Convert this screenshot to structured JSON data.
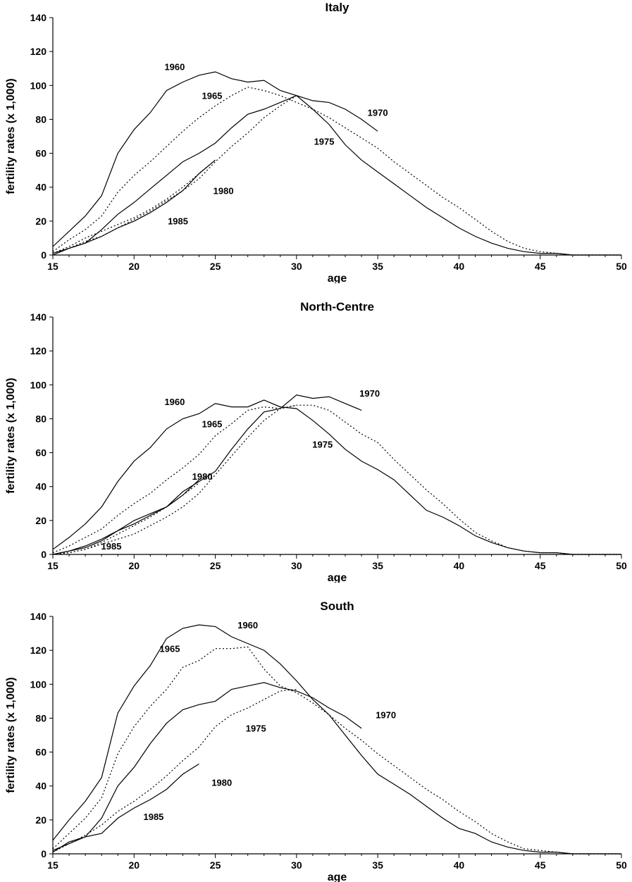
{
  "chart_data": [
    {
      "type": "line",
      "title": "Italy",
      "xlabel": "age",
      "ylabel": "fertility rates (x 1,000)",
      "xlim": [
        15,
        50
      ],
      "ylim": [
        0,
        140
      ],
      "xticks": [
        "15",
        "20",
        "25",
        "30",
        "35",
        "40",
        "45",
        "50"
      ],
      "yticks": [
        "0",
        "20",
        "40",
        "60",
        "80",
        "100",
        "120",
        "140"
      ],
      "legend": "none",
      "grid": false,
      "series": [
        {
          "style": "solid",
          "x": [
            15,
            16,
            17,
            18,
            19,
            20,
            21,
            22,
            23,
            24,
            25,
            26,
            27,
            28,
            29,
            30,
            31,
            32,
            33,
            34,
            35,
            36,
            37,
            38,
            39,
            40,
            41,
            42,
            43,
            44,
            45,
            46,
            47,
            48,
            49,
            50
          ],
          "y": [
            5,
            14,
            23,
            35,
            60,
            74,
            84,
            97,
            102,
            106,
            108,
            104,
            102,
            103,
            97,
            94,
            86,
            77,
            65,
            56,
            49,
            42,
            35,
            28,
            22,
            16,
            11,
            7,
            4,
            2,
            1,
            1,
            0,
            0,
            0,
            0
          ]
        },
        {
          "style": "dotted",
          "x": [
            15,
            16,
            17,
            18,
            19,
            20,
            21,
            22,
            23,
            24,
            25,
            26,
            27,
            28,
            29,
            30,
            31,
            32,
            33,
            34,
            35,
            36,
            37,
            38,
            39,
            40,
            41,
            42,
            43,
            44,
            45,
            46,
            47,
            48,
            49,
            50
          ],
          "y": [
            2,
            9,
            15,
            23,
            37,
            47,
            55,
            64,
            73,
            81,
            88,
            94,
            99,
            97,
            94,
            90,
            86,
            81,
            75,
            69,
            63,
            55,
            48,
            41,
            34,
            28,
            21,
            14,
            8,
            4,
            2,
            1,
            0,
            0,
            0,
            0
          ]
        },
        {
          "style": "solid",
          "x": [
            15,
            16,
            17,
            18,
            19,
            20,
            21,
            22,
            23,
            24,
            25,
            26,
            27,
            28,
            29,
            30,
            31,
            32,
            33,
            34,
            35
          ],
          "y": [
            1,
            4,
            7,
            15,
            24,
            31,
            39,
            47,
            55,
            60,
            66,
            75,
            83,
            86,
            90,
            94,
            91,
            90,
            86,
            80,
            73
          ]
        },
        {
          "style": "dotted",
          "x": [
            15,
            16,
            17,
            18,
            19,
            20,
            21,
            22,
            23,
            24,
            25,
            26,
            27,
            28,
            29,
            30
          ],
          "y": [
            1,
            4,
            8,
            11,
            16,
            21,
            26,
            32,
            38,
            45,
            55,
            64,
            72,
            81,
            88,
            94
          ]
        },
        {
          "style": "dotted",
          "x": [
            15,
            16,
            17,
            18,
            19,
            20,
            21,
            22,
            23,
            24,
            25
          ],
          "y": [
            1,
            5,
            10,
            14,
            18,
            22,
            27,
            33,
            40,
            48,
            56
          ]
        },
        {
          "style": "solid",
          "x": [
            15,
            16,
            17,
            18,
            19,
            20,
            21,
            22,
            23,
            24,
            25
          ],
          "y": [
            0,
            4,
            7,
            11,
            16,
            20,
            25,
            31,
            38,
            48,
            56
          ]
        }
      ],
      "annotations": [
        {
          "text": "1960",
          "x": 22.5,
          "y": 109
        },
        {
          "text": "1965",
          "x": 24.8,
          "y": 92
        },
        {
          "text": "1970",
          "x": 35,
          "y": 82
        },
        {
          "text": "1975",
          "x": 31.7,
          "y": 65
        },
        {
          "text": "1980",
          "x": 25.5,
          "y": 36
        },
        {
          "text": "1985",
          "x": 22.7,
          "y": 18
        }
      ]
    },
    {
      "type": "line",
      "title": "North-Centre",
      "xlabel": "age",
      "ylabel": "fertility rates (x 1,000)",
      "xlim": [
        15,
        50
      ],
      "ylim": [
        0,
        140
      ],
      "xticks": [
        "15",
        "20",
        "25",
        "30",
        "35",
        "40",
        "45",
        "50"
      ],
      "yticks": [
        "0",
        "20",
        "40",
        "60",
        "80",
        "100",
        "120",
        "140"
      ],
      "legend": "none",
      "grid": false,
      "series": [
        {
          "style": "solid",
          "x": [
            15,
            16,
            17,
            18,
            19,
            20,
            21,
            22,
            23,
            24,
            25,
            26,
            27,
            28,
            29,
            30,
            31,
            32,
            33,
            34,
            35,
            36,
            37,
            38,
            39,
            40,
            41,
            42,
            43,
            44,
            45,
            46,
            47,
            48,
            49,
            50
          ],
          "y": [
            3,
            10,
            18,
            28,
            43,
            55,
            63,
            74,
            80,
            83,
            89,
            87,
            87,
            91,
            87,
            86,
            79,
            71,
            62,
            55,
            50,
            44,
            35,
            26,
            22,
            17,
            11,
            7,
            4,
            2,
            1,
            1,
            0,
            0,
            0,
            0
          ]
        },
        {
          "style": "dotted",
          "x": [
            15,
            16,
            17,
            18,
            19,
            20,
            21,
            22,
            23,
            24,
            25,
            26,
            27,
            28,
            29,
            30,
            31,
            32,
            33,
            34,
            35,
            36,
            37,
            38,
            39,
            40,
            41,
            42,
            43,
            44,
            45,
            46,
            47,
            48,
            49,
            50
          ],
          "y": [
            1,
            5,
            10,
            15,
            23,
            30,
            36,
            44,
            51,
            59,
            70,
            77,
            85,
            87,
            86,
            88,
            88,
            85,
            78,
            71,
            66,
            56,
            47,
            38,
            30,
            21,
            13,
            8,
            4,
            2,
            1,
            1,
            0,
            0,
            0,
            0
          ]
        },
        {
          "style": "solid",
          "x": [
            15,
            16,
            17,
            18,
            19,
            20,
            21,
            22,
            23,
            24,
            25,
            26,
            27,
            28,
            29,
            30,
            31,
            32,
            33,
            34
          ],
          "y": [
            0,
            2,
            4,
            8,
            14,
            20,
            24,
            28,
            37,
            43,
            49,
            62,
            74,
            84,
            86,
            94,
            92,
            93,
            89,
            85
          ]
        },
        {
          "style": "dotted",
          "x": [
            15,
            16,
            17,
            18,
            19,
            20,
            21,
            22,
            23,
            24,
            25,
            26,
            27,
            28,
            29,
            30
          ],
          "y": [
            0,
            1,
            3,
            6,
            9,
            12,
            17,
            22,
            28,
            36,
            47,
            58,
            69,
            79,
            86,
            88
          ]
        },
        {
          "style": "solid",
          "x": [
            15,
            16,
            17,
            18,
            19,
            20,
            21,
            22,
            23,
            24
          ],
          "y": [
            0,
            2,
            5,
            9,
            14,
            18,
            23,
            28,
            35,
            44
          ]
        },
        {
          "style": "dotted",
          "x": [
            15,
            16,
            17,
            18,
            19,
            20,
            21,
            22,
            23,
            24
          ],
          "y": [
            0,
            1,
            3,
            7,
            12,
            17,
            22,
            28,
            35,
            42
          ]
        }
      ],
      "annotations": [
        {
          "text": "1960",
          "x": 22.5,
          "y": 88
        },
        {
          "text": "1965",
          "x": 24.8,
          "y": 75
        },
        {
          "text": "1970",
          "x": 34.5,
          "y": 93
        },
        {
          "text": "1975",
          "x": 31.6,
          "y": 63
        },
        {
          "text": "1980",
          "x": 24.2,
          "y": 44
        },
        {
          "text": "1985",
          "x": 18.6,
          "y": 3
        }
      ]
    },
    {
      "type": "line",
      "title": "South",
      "xlabel": "age",
      "ylabel": "fertility rates (x 1,000)",
      "xlim": [
        15,
        50
      ],
      "ylim": [
        0,
        140
      ],
      "xticks": [
        "15",
        "20",
        "25",
        "30",
        "35",
        "40",
        "45",
        "50"
      ],
      "yticks": [
        "0",
        "20",
        "40",
        "60",
        "80",
        "100",
        "120",
        "140"
      ],
      "legend": "none",
      "grid": false,
      "series": [
        {
          "style": "solid",
          "x": [
            15,
            16,
            17,
            18,
            19,
            20,
            21,
            22,
            23,
            24,
            25,
            26,
            27,
            28,
            29,
            30,
            31,
            32,
            33,
            34,
            35,
            36,
            37,
            38,
            39,
            40,
            41,
            42,
            43,
            44,
            45,
            46,
            47,
            48,
            49,
            50
          ],
          "y": [
            8,
            20,
            31,
            45,
            83,
            99,
            111,
            127,
            133,
            135,
            134,
            128,
            124,
            120,
            112,
            102,
            91,
            82,
            70,
            58,
            47,
            41,
            35,
            28,
            21,
            15,
            12,
            7,
            4,
            2,
            1,
            1,
            0,
            0,
            0,
            0
          ]
        },
        {
          "style": "dotted",
          "x": [
            15,
            16,
            17,
            18,
            19,
            20,
            21,
            22,
            23,
            24,
            25,
            26,
            27,
            28,
            29,
            30,
            31,
            32,
            33,
            34,
            35,
            36,
            37,
            38,
            39,
            40,
            41,
            42,
            43,
            44,
            45,
            46,
            47,
            48,
            49,
            50
          ],
          "y": [
            3,
            12,
            21,
            33,
            59,
            75,
            87,
            97,
            110,
            114,
            121,
            121,
            122,
            109,
            99,
            95,
            89,
            82,
            74,
            67,
            59,
            52,
            45,
            38,
            32,
            25,
            19,
            12,
            7,
            3,
            2,
            1,
            0,
            0,
            0,
            0
          ]
        },
        {
          "style": "solid",
          "x": [
            15,
            16,
            17,
            18,
            19,
            20,
            21,
            22,
            23,
            24,
            25,
            26,
            27,
            28,
            29,
            30,
            31,
            32,
            33,
            34
          ],
          "y": [
            2,
            6,
            10,
            21,
            40,
            51,
            65,
            77,
            85,
            88,
            90,
            97,
            99,
            101,
            98,
            96,
            92,
            86,
            81,
            74
          ]
        },
        {
          "style": "dotted",
          "x": [
            15,
            16,
            17,
            18,
            19,
            20,
            21,
            22,
            23,
            24,
            25,
            26,
            27,
            28,
            29,
            30
          ],
          "y": [
            1,
            6,
            11,
            17,
            25,
            31,
            38,
            46,
            55,
            63,
            75,
            82,
            86,
            91,
            96,
            97
          ]
        },
        {
          "style": "solid",
          "x": [
            15,
            16,
            17,
            18,
            19,
            20,
            21,
            22,
            23,
            24
          ],
          "y": [
            1,
            7,
            10,
            12,
            21,
            27,
            32,
            38,
            47,
            53
          ]
        }
      ],
      "annotations": [
        {
          "text": "1960",
          "x": 27,
          "y": 133
        },
        {
          "text": "1965",
          "x": 22.2,
          "y": 119
        },
        {
          "text": "1970",
          "x": 35.5,
          "y": 80
        },
        {
          "text": "1975",
          "x": 27.5,
          "y": 72
        },
        {
          "text": "1980",
          "x": 25.4,
          "y": 40
        },
        {
          "text": "1985",
          "x": 21.2,
          "y": 20
        }
      ]
    }
  ]
}
